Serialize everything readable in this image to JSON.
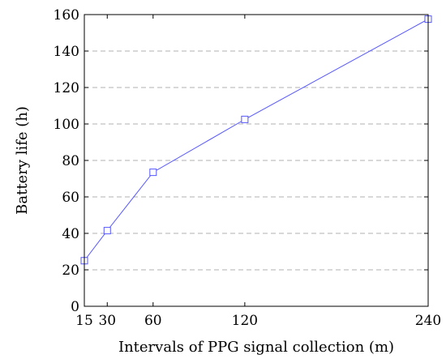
{
  "chart_data": {
    "type": "line",
    "title": "",
    "xlabel": "Intervals of PPG signal collection (m)",
    "ylabel": "Battery life (h)",
    "x": [
      15,
      30,
      60,
      120,
      240
    ],
    "x_ticks": [
      15,
      30,
      60,
      120,
      240
    ],
    "y_ticks": [
      0,
      20,
      40,
      60,
      80,
      100,
      120,
      140,
      160
    ],
    "xlim": [
      15,
      240
    ],
    "ylim": [
      0,
      160
    ],
    "grid": "horizontal-dashed",
    "series": [
      {
        "values": [
          25,
          41.5,
          73.5,
          102.5,
          157.5
        ],
        "color": "#5555ff",
        "marker": "square"
      }
    ]
  }
}
